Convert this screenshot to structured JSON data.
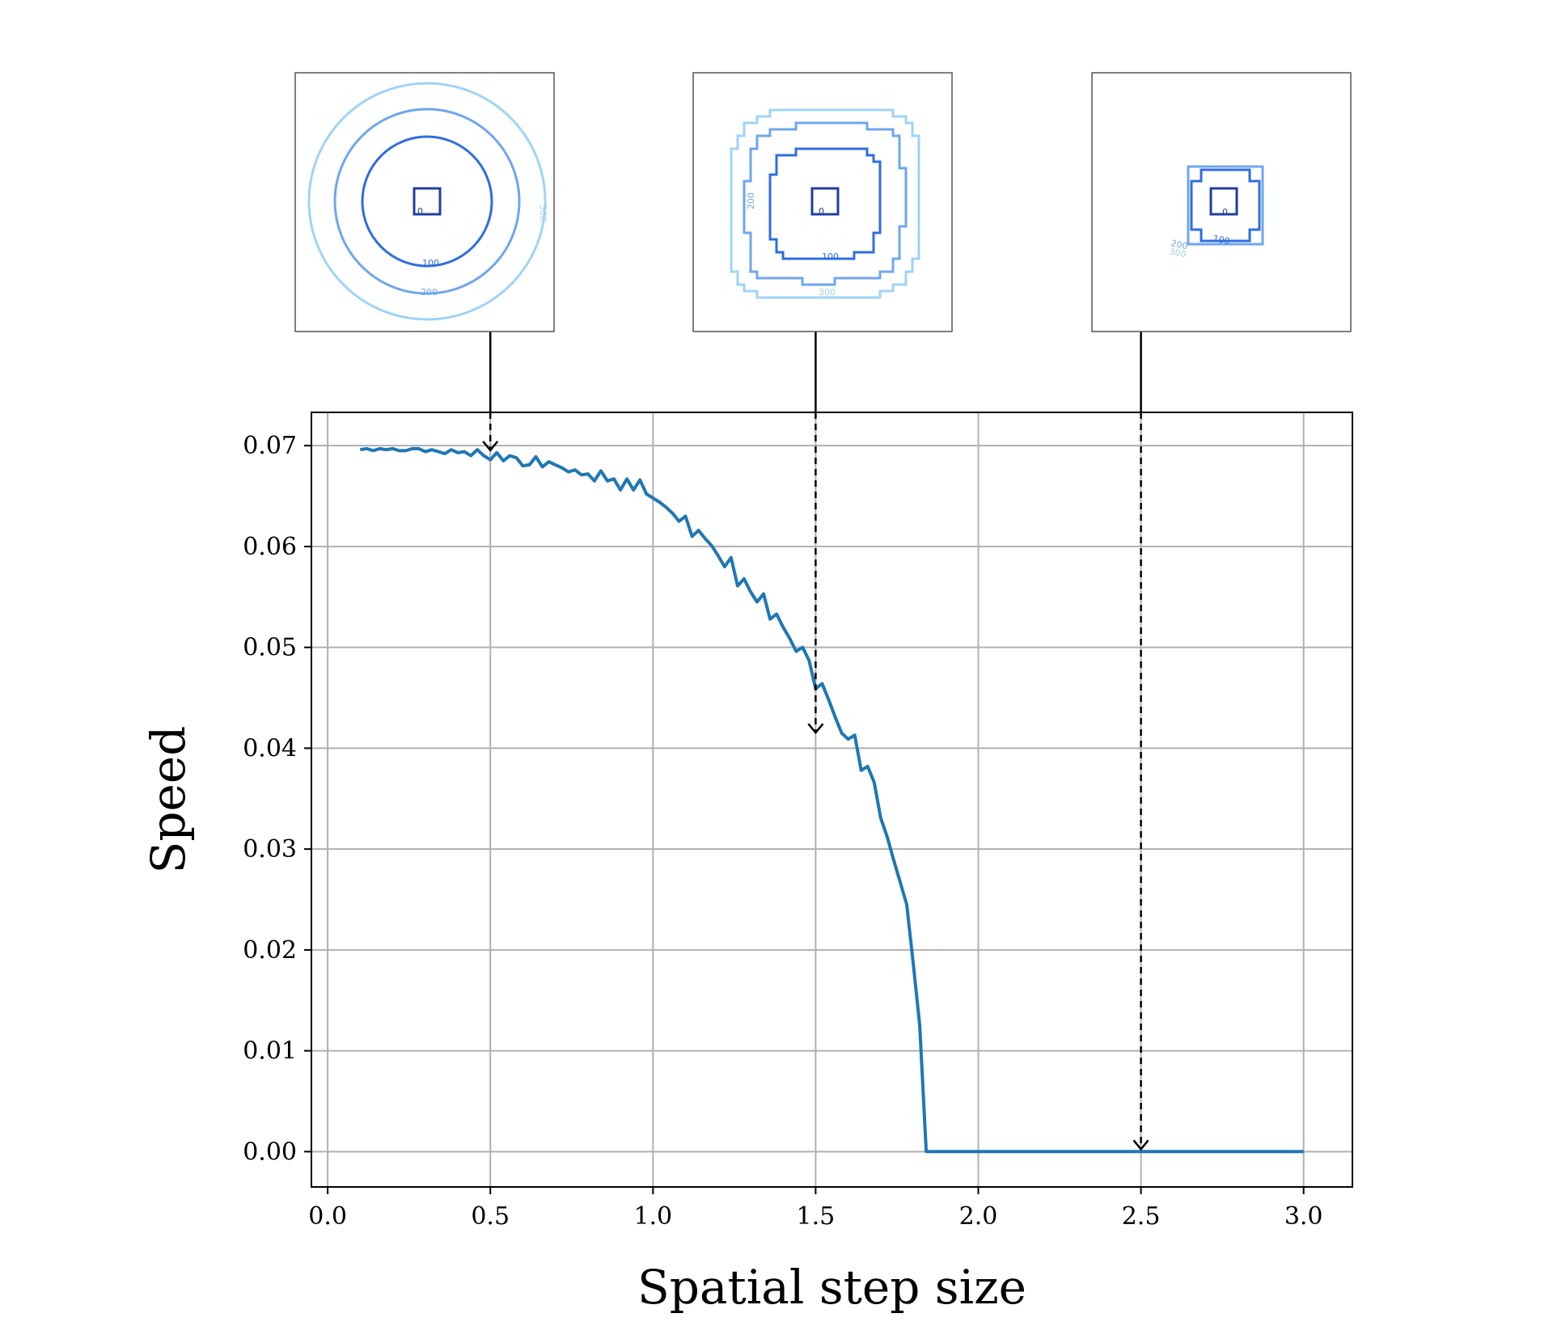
{
  "chart_data": {
    "type": "line",
    "xlabel": "Spatial step size",
    "ylabel": "Speed",
    "xlim": [
      -0.05,
      3.15
    ],
    "ylim": [
      -0.0035,
      0.0733
    ],
    "x_ticks": [
      "0.0",
      "0.5",
      "1.0",
      "1.5",
      "2.0",
      "2.5",
      "3.0"
    ],
    "y_ticks": [
      "0.00",
      "0.01",
      "0.02",
      "0.03",
      "0.04",
      "0.05",
      "0.06",
      "0.07"
    ],
    "grid": true,
    "line_color": "#1f77b4",
    "series": [
      {
        "points": [
          [
            0.1,
            0.0696
          ],
          [
            0.12,
            0.0697
          ],
          [
            0.14,
            0.0695
          ],
          [
            0.16,
            0.0697
          ],
          [
            0.18,
            0.0696
          ],
          [
            0.2,
            0.0697
          ],
          [
            0.22,
            0.0695
          ],
          [
            0.24,
            0.0695
          ],
          [
            0.26,
            0.0697
          ],
          [
            0.28,
            0.0697
          ],
          [
            0.3,
            0.0694
          ],
          [
            0.32,
            0.0696
          ],
          [
            0.34,
            0.0694
          ],
          [
            0.36,
            0.0692
          ],
          [
            0.38,
            0.0696
          ],
          [
            0.4,
            0.0693
          ],
          [
            0.42,
            0.0694
          ],
          [
            0.44,
            0.069
          ],
          [
            0.46,
            0.0696
          ],
          [
            0.48,
            0.069
          ],
          [
            0.5,
            0.0686
          ],
          [
            0.52,
            0.0693
          ],
          [
            0.54,
            0.0685
          ],
          [
            0.56,
            0.069
          ],
          [
            0.58,
            0.0688
          ],
          [
            0.6,
            0.068
          ],
          [
            0.62,
            0.0681
          ],
          [
            0.64,
            0.0689
          ],
          [
            0.66,
            0.0679
          ],
          [
            0.68,
            0.0684
          ],
          [
            0.7,
            0.0681
          ],
          [
            0.72,
            0.0678
          ],
          [
            0.74,
            0.0674
          ],
          [
            0.76,
            0.0676
          ],
          [
            0.78,
            0.0671
          ],
          [
            0.8,
            0.0672
          ],
          [
            0.82,
            0.0665
          ],
          [
            0.84,
            0.0675
          ],
          [
            0.86,
            0.0665
          ],
          [
            0.88,
            0.0667
          ],
          [
            0.9,
            0.0656
          ],
          [
            0.92,
            0.0667
          ],
          [
            0.94,
            0.0656
          ],
          [
            0.96,
            0.0666
          ],
          [
            0.98,
            0.0652
          ],
          [
            1.0,
            0.0648
          ],
          [
            1.02,
            0.0644
          ],
          [
            1.04,
            0.0639
          ],
          [
            1.06,
            0.0633
          ],
          [
            1.08,
            0.0625
          ],
          [
            1.1,
            0.063
          ],
          [
            1.12,
            0.061
          ],
          [
            1.14,
            0.0616
          ],
          [
            1.16,
            0.0608
          ],
          [
            1.18,
            0.0601
          ],
          [
            1.2,
            0.0591
          ],
          [
            1.22,
            0.058
          ],
          [
            1.24,
            0.0589
          ],
          [
            1.26,
            0.0561
          ],
          [
            1.28,
            0.0568
          ],
          [
            1.3,
            0.0555
          ],
          [
            1.32,
            0.0545
          ],
          [
            1.34,
            0.0553
          ],
          [
            1.36,
            0.0528
          ],
          [
            1.38,
            0.0533
          ],
          [
            1.4,
            0.052
          ],
          [
            1.42,
            0.0509
          ],
          [
            1.44,
            0.0496
          ],
          [
            1.46,
            0.05
          ],
          [
            1.48,
            0.0487
          ],
          [
            1.5,
            0.0459
          ],
          [
            1.52,
            0.0464
          ],
          [
            1.54,
            0.0448
          ],
          [
            1.56,
            0.0431
          ],
          [
            1.58,
            0.0415
          ],
          [
            1.6,
            0.0409
          ],
          [
            1.62,
            0.0413
          ],
          [
            1.64,
            0.0378
          ],
          [
            1.66,
            0.0382
          ],
          [
            1.68,
            0.0366
          ],
          [
            1.7,
            0.0331
          ],
          [
            1.72,
            0.0312
          ],
          [
            1.74,
            0.0289
          ],
          [
            1.76,
            0.0267
          ],
          [
            1.78,
            0.0245
          ],
          [
            1.8,
            0.0187
          ],
          [
            1.82,
            0.0125
          ],
          [
            1.84,
            0.0
          ],
          [
            2.0,
            0.0
          ],
          [
            2.2,
            0.0
          ],
          [
            2.4,
            0.0
          ],
          [
            2.6,
            0.0
          ],
          [
            2.8,
            0.0
          ],
          [
            3.0,
            0.0
          ]
        ]
      }
    ],
    "annotations": [
      {
        "x": 0.5,
        "y": 0.0693
      },
      {
        "x": 1.5,
        "y": 0.0413
      },
      {
        "x": 2.5,
        "y": 0.0
      }
    ]
  },
  "insets": [
    {
      "shape": "circles",
      "labels": [
        "0",
        "100",
        "200",
        "300"
      ],
      "colors": [
        "#1f3f9e",
        "#2f6de0",
        "#6fa6ef",
        "#9fd3f7"
      ]
    },
    {
      "shape": "rounded-steps",
      "labels": [
        "0",
        "100",
        "200",
        "300"
      ],
      "colors": [
        "#1f3f9e",
        "#2f6de0",
        "#6fa6ef",
        "#9fd3f7"
      ]
    },
    {
      "shape": "small-steps",
      "labels": [
        "0",
        "100",
        "200",
        "300"
      ],
      "colors": [
        "#1f3f9e",
        "#2f6de0",
        "#6fa6ef",
        "#9fd3f7"
      ]
    }
  ]
}
